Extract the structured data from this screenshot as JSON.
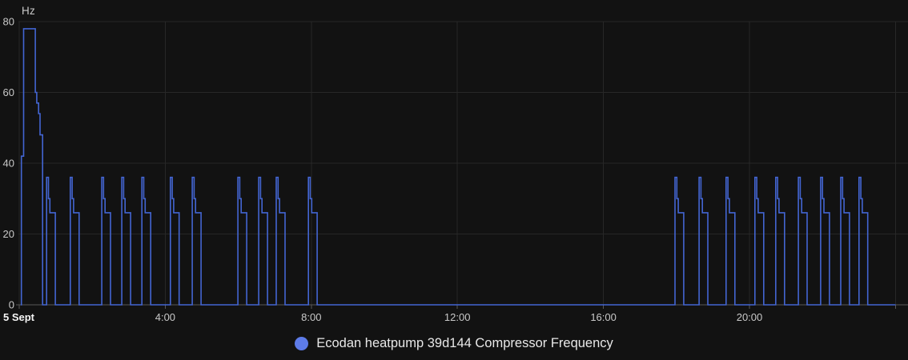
{
  "unit_label": "Hz",
  "colors": {
    "background": "#121212",
    "line": "#4365d2",
    "legend_dot": "#5d7be8",
    "grid": "#272727",
    "axis": "#585858",
    "tick_label": "#c9c9c9",
    "date_label": "#f5f5f5",
    "legend_text": "#e8e8e8"
  },
  "legend": {
    "items": [
      {
        "label": "Ecodan heatpump 39d144 Compressor Frequency",
        "color": "#5d7be8"
      }
    ]
  },
  "chart_data": {
    "type": "line",
    "line_style": "step-after",
    "title": "",
    "unit": "Hz",
    "ylabel": "Hz",
    "xlabel": "",
    "ylim": [
      0,
      80
    ],
    "y_ticks": [
      0,
      20,
      40,
      60,
      80
    ],
    "xlim_hours": [
      0,
      24.4
    ],
    "x_ticks": [
      {
        "hour": 0,
        "label": "5 Sept",
        "emphasis": true,
        "align": "start"
      },
      {
        "hour": 4,
        "label": "4:00"
      },
      {
        "hour": 8,
        "label": "8:00"
      },
      {
        "hour": 12,
        "label": "12:00"
      },
      {
        "hour": 16,
        "label": "16:00"
      },
      {
        "hour": 20,
        "label": "20:00"
      },
      {
        "hour": 24,
        "label": ""
      }
    ],
    "grid": true,
    "legend_position": "bottom-center",
    "series": [
      {
        "name": "Ecodan heatpump 39d144 Compressor Frequency",
        "color": "#4365d2",
        "end_hour": 24.0,
        "points": [
          [
            0.04,
            0
          ],
          [
            0.06,
            42
          ],
          [
            0.12,
            78
          ],
          [
            0.44,
            60
          ],
          [
            0.48,
            57
          ],
          [
            0.53,
            54
          ],
          [
            0.57,
            48
          ],
          [
            0.64,
            0
          ],
          [
            0.75,
            36
          ],
          [
            0.8,
            30
          ],
          [
            0.84,
            26
          ],
          [
            0.99,
            0
          ],
          [
            1.4,
            36
          ],
          [
            1.45,
            30
          ],
          [
            1.49,
            26
          ],
          [
            1.64,
            0
          ],
          [
            2.26,
            36
          ],
          [
            2.31,
            30
          ],
          [
            2.35,
            26
          ],
          [
            2.5,
            0
          ],
          [
            2.81,
            36
          ],
          [
            2.86,
            30
          ],
          [
            2.9,
            26
          ],
          [
            3.05,
            0
          ],
          [
            3.36,
            36
          ],
          [
            3.41,
            30
          ],
          [
            3.45,
            26
          ],
          [
            3.6,
            0
          ],
          [
            4.14,
            36
          ],
          [
            4.19,
            30
          ],
          [
            4.23,
            26
          ],
          [
            4.38,
            0
          ],
          [
            4.74,
            36
          ],
          [
            4.79,
            30
          ],
          [
            4.83,
            26
          ],
          [
            4.98,
            0
          ],
          [
            5.99,
            36
          ],
          [
            6.04,
            30
          ],
          [
            6.08,
            26
          ],
          [
            6.23,
            0
          ],
          [
            6.56,
            36
          ],
          [
            6.61,
            30
          ],
          [
            6.65,
            26
          ],
          [
            6.8,
            0
          ],
          [
            7.04,
            36
          ],
          [
            7.09,
            30
          ],
          [
            7.13,
            26
          ],
          [
            7.28,
            0
          ],
          [
            7.92,
            36
          ],
          [
            7.97,
            30
          ],
          [
            8.01,
            26
          ],
          [
            8.16,
            0
          ],
          [
            17.96,
            36
          ],
          [
            18.01,
            30
          ],
          [
            18.05,
            26
          ],
          [
            18.2,
            0
          ],
          [
            18.62,
            36
          ],
          [
            18.67,
            30
          ],
          [
            18.71,
            26
          ],
          [
            18.86,
            0
          ],
          [
            19.36,
            36
          ],
          [
            19.41,
            30
          ],
          [
            19.45,
            26
          ],
          [
            19.6,
            0
          ],
          [
            20.15,
            36
          ],
          [
            20.2,
            30
          ],
          [
            20.24,
            26
          ],
          [
            20.39,
            0
          ],
          [
            20.72,
            36
          ],
          [
            20.77,
            30
          ],
          [
            20.81,
            26
          ],
          [
            20.96,
            0
          ],
          [
            21.34,
            36
          ],
          [
            21.39,
            30
          ],
          [
            21.43,
            26
          ],
          [
            21.58,
            0
          ],
          [
            21.95,
            36
          ],
          [
            22.0,
            30
          ],
          [
            22.04,
            26
          ],
          [
            22.19,
            0
          ],
          [
            22.5,
            36
          ],
          [
            22.55,
            30
          ],
          [
            22.59,
            26
          ],
          [
            22.74,
            0
          ],
          [
            23.0,
            36
          ],
          [
            23.05,
            30
          ],
          [
            23.09,
            26
          ],
          [
            23.24,
            0
          ]
        ]
      }
    ]
  }
}
